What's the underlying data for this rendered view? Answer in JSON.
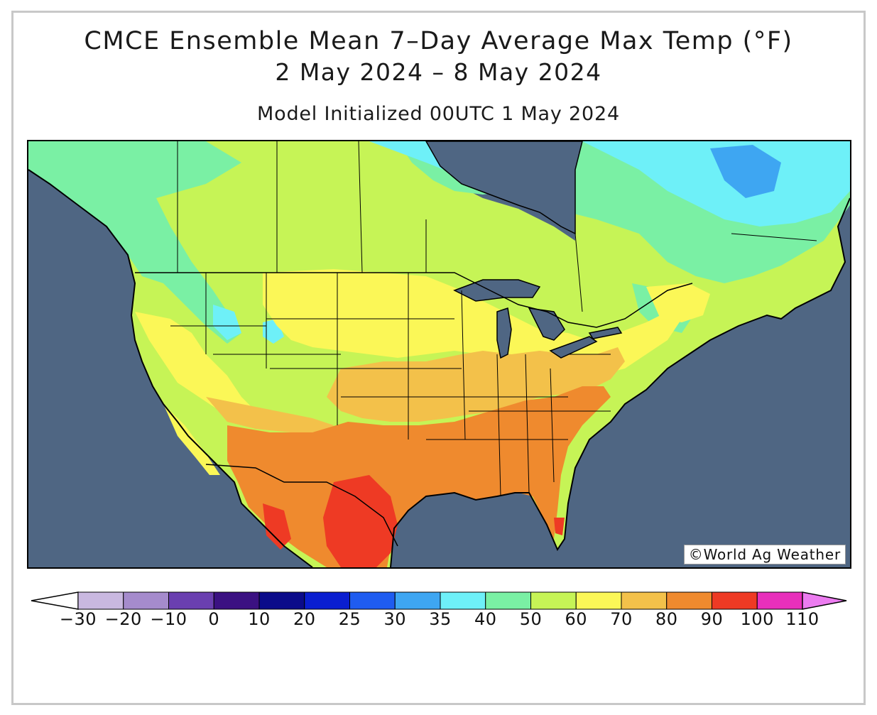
{
  "title": {
    "line1": "CMCE Ensemble Mean 7–Day Average Max Temp (°F)",
    "line2": "2 May 2024 – 8 May 2024",
    "line3": "Model Initialized 00UTC 1 May 2024"
  },
  "credit": "©World Ag Weather",
  "colorbar": {
    "unit": "°F",
    "ticks": [
      "-30",
      "-20",
      "-10",
      "0",
      "10",
      "20",
      "25",
      "30",
      "35",
      "40",
      "50",
      "60",
      "70",
      "80",
      "90",
      "100",
      "110"
    ],
    "bins": [
      {
        "lo": -30,
        "hi": -20,
        "color": "#c9b8e0"
      },
      {
        "lo": -20,
        "hi": -10,
        "color": "#a58bcc"
      },
      {
        "lo": -10,
        "hi": 0,
        "color": "#6a3fb0"
      },
      {
        "lo": 0,
        "hi": 10,
        "color": "#3b1182"
      },
      {
        "lo": 10,
        "hi": 20,
        "color": "#0b0b8a"
      },
      {
        "lo": 20,
        "hi": 25,
        "color": "#0a1ed0"
      },
      {
        "lo": 25,
        "hi": 30,
        "color": "#1f5cf0"
      },
      {
        "lo": 30,
        "hi": 35,
        "color": "#3ea6f2"
      },
      {
        "lo": 35,
        "hi": 40,
        "color": "#6ef0f8"
      },
      {
        "lo": 40,
        "hi": 50,
        "color": "#7af0a4"
      },
      {
        "lo": 50,
        "hi": 60,
        "color": "#c6f456"
      },
      {
        "lo": 60,
        "hi": 70,
        "color": "#fbf757"
      },
      {
        "lo": 70,
        "hi": 80,
        "color": "#f3c14a"
      },
      {
        "lo": 80,
        "hi": 90,
        "color": "#ef8a2e"
      },
      {
        "lo": 90,
        "hi": 100,
        "color": "#ee3a24"
      },
      {
        "lo": 100,
        "hi": 110,
        "color": "#e82fbb"
      }
    ],
    "under_color": "#ffffff",
    "over_color": "#ec7cf0"
  },
  "colors": {
    "ocean": "#4f6683",
    "border": "#000000"
  }
}
